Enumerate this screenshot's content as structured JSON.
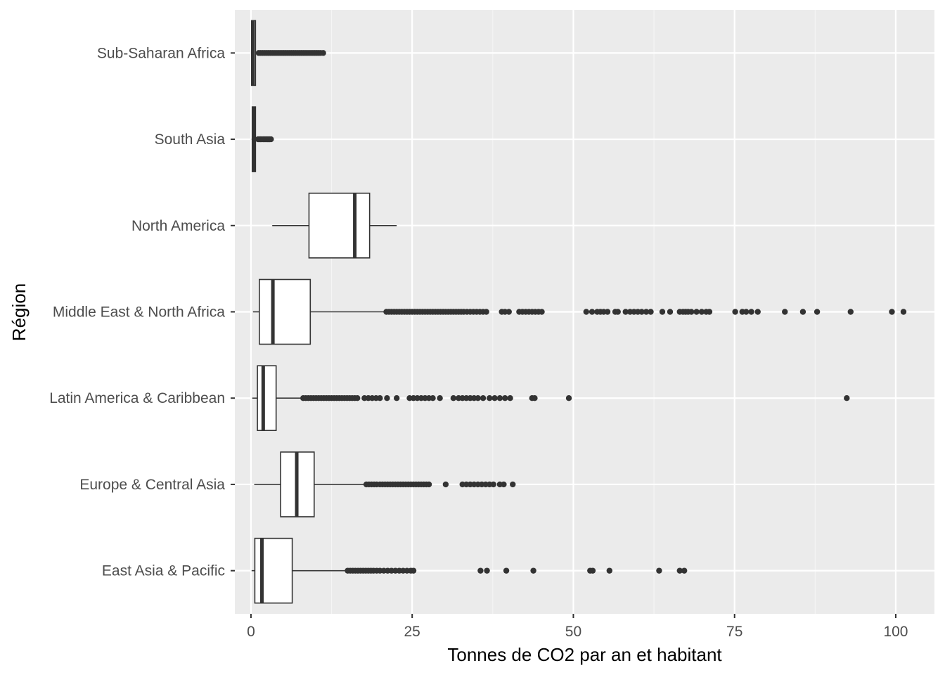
{
  "chart_data": {
    "type": "boxplot",
    "orientation": "horizontal",
    "xlabel": "Tonnes de CO2 par an et habitant",
    "ylabel": "Région",
    "xlim": [
      -2.5,
      106
    ],
    "x_ticks": [
      0,
      25,
      50,
      75,
      100
    ],
    "x_tick_labels": [
      "0",
      "25",
      "50",
      "75",
      "100"
    ],
    "categories": [
      "East Asia & Pacific",
      "Europe & Central Asia",
      "Latin America & Caribbean",
      "Middle East & North Africa",
      "North America",
      "South Asia",
      "Sub-Saharan Africa"
    ],
    "boxes": [
      {
        "category": "East Asia & Pacific",
        "whisker_low": 0.1,
        "q1": 0.6,
        "median": 1.7,
        "q3": 6.4,
        "whisker_high": 14.9,
        "outliers": [
          15.0,
          15.4,
          15.8,
          16.2,
          16.6,
          17.0,
          17.4,
          17.8,
          18.2,
          18.6,
          19.0,
          19.5,
          20.0,
          20.6,
          21.2,
          21.8,
          22.4,
          23.0,
          23.6,
          24.2,
          24.8,
          25.2,
          35.6,
          36.6,
          39.6,
          43.8,
          52.6,
          53.0,
          55.6,
          63.3,
          66.5,
          67.2
        ]
      },
      {
        "category": "Europe & Central Asia",
        "whisker_low": 0.5,
        "q1": 4.6,
        "median": 7.1,
        "q3": 9.8,
        "whisker_high": 17.8,
        "outliers": [
          17.9,
          18.3,
          18.7,
          19.1,
          19.5,
          20.0,
          20.4,
          20.8,
          21.2,
          21.6,
          22.0,
          22.4,
          22.8,
          23.2,
          23.6,
          24.0,
          24.4,
          24.8,
          25.2,
          25.6,
          26.0,
          26.4,
          26.8,
          27.2,
          27.6,
          30.2,
          32.8,
          33.4,
          34.0,
          34.6,
          35.2,
          35.8,
          36.4,
          37.0,
          37.6,
          38.6,
          39.2,
          40.6
        ]
      },
      {
        "category": "Latin America & Caribbean",
        "whisker_low": 0.2,
        "q1": 1.0,
        "median": 1.9,
        "q3": 3.9,
        "whisker_high": 8.0,
        "outliers": [
          8.1,
          8.5,
          8.9,
          9.3,
          9.7,
          10.1,
          10.5,
          10.9,
          11.3,
          11.7,
          12.1,
          12.5,
          12.9,
          13.3,
          13.7,
          14.1,
          14.5,
          14.9,
          15.3,
          15.7,
          16.1,
          16.5,
          17.6,
          18.2,
          18.8,
          19.4,
          20.0,
          21.1,
          22.6,
          24.6,
          25.2,
          25.8,
          26.4,
          27.0,
          27.6,
          28.2,
          29.3,
          31.4,
          32.2,
          32.8,
          33.4,
          34.0,
          34.6,
          35.2,
          36.0,
          37.0,
          37.8,
          38.6,
          39.4,
          40.2,
          43.6,
          44.0,
          49.3,
          92.4
        ]
      },
      {
        "category": "Middle East & North Africa",
        "whisker_low": 0.3,
        "q1": 1.3,
        "median": 3.4,
        "q3": 9.2,
        "whisker_high": 20.9,
        "outliers": [
          21.0,
          21.4,
          21.8,
          22.2,
          22.6,
          23.0,
          23.4,
          23.8,
          24.2,
          24.6,
          25.0,
          25.4,
          25.8,
          26.2,
          26.6,
          27.0,
          27.4,
          27.8,
          28.2,
          28.6,
          29.0,
          29.4,
          29.8,
          30.2,
          30.6,
          31.0,
          31.4,
          31.8,
          32.2,
          32.6,
          33.0,
          33.5,
          34.0,
          34.5,
          35.0,
          35.5,
          36.0,
          36.5,
          38.9,
          39.4,
          40.0,
          41.6,
          42.1,
          42.6,
          43.1,
          43.6,
          44.1,
          44.6,
          45.1,
          52.0,
          52.9,
          53.7,
          54.2,
          54.7,
          55.3,
          56.5,
          56.9,
          58.1,
          58.8,
          59.4,
          60.0,
          60.6,
          61.3,
          62.0,
          63.8,
          65.0,
          66.5,
          67.0,
          67.4,
          67.8,
          68.3,
          69.1,
          69.9,
          70.6,
          71.1,
          75.1,
          76.2,
          76.8,
          77.6,
          78.6,
          82.8,
          85.6,
          87.8,
          93.0,
          99.4,
          101.2
        ]
      },
      {
        "category": "North America",
        "whisker_low": 3.3,
        "q1": 9.0,
        "median": 16.1,
        "q3": 18.4,
        "whisker_high": 22.6,
        "outliers": []
      },
      {
        "category": "South Asia",
        "whisker_low": 0.1,
        "q1": 0.2,
        "median": 0.4,
        "q3": 0.7,
        "whisker_high": 1.0,
        "outliers": [
          1.1,
          1.3,
          1.5,
          1.7,
          1.9,
          2.1,
          2.3,
          2.5,
          2.7,
          2.9,
          3.1
        ]
      },
      {
        "category": "Sub-Saharan Africa",
        "whisker_low": 0.0,
        "q1": 0.1,
        "median": 0.3,
        "q3": 0.7,
        "whisker_high": 1.0,
        "outliers": [
          1.2,
          1.5,
          1.8,
          2.1,
          2.4,
          2.7,
          3.0,
          3.3,
          3.6,
          3.9,
          4.2,
          4.5,
          4.8,
          5.1,
          5.4,
          5.7,
          6.0,
          6.3,
          6.6,
          6.9,
          7.2,
          7.5,
          7.8,
          8.1,
          8.4,
          8.7,
          9.0,
          9.3,
          9.6,
          9.9,
          10.2,
          10.5,
          10.8,
          11.2
        ]
      }
    ],
    "grid": true,
    "legend": "none",
    "colors": {
      "panel_background": "#ebebeb",
      "grid_major": "#ffffff",
      "grid_minor": "#f5f5f5",
      "box_fill": "#ffffff",
      "box_stroke": "#333333",
      "outlier": "#333333",
      "tick_text": "#4d4d4d",
      "axis_title": "#000000"
    }
  }
}
